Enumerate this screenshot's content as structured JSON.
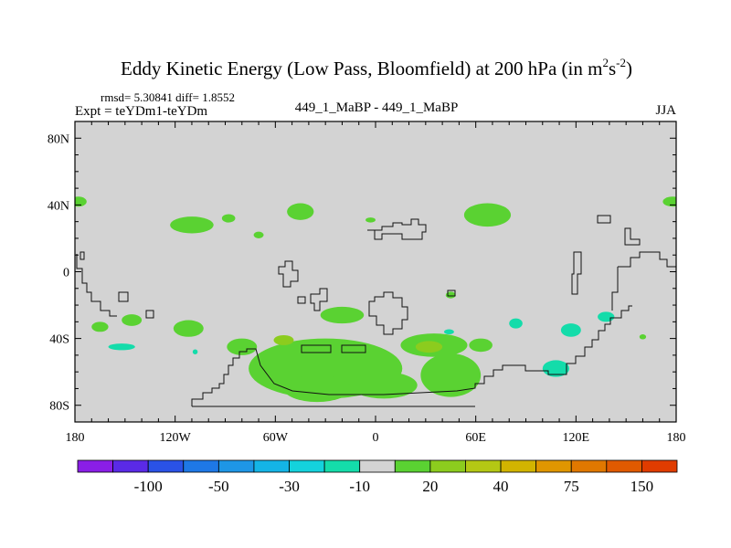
{
  "chart_data": {
    "type": "heatmap",
    "title": {
      "main": "Eddy Kinetic Energy (Low Pass, Bloomfield) at 200 hPa (in m",
      "sup1": "2",
      "mid": "s",
      "sup2": "-2",
      "end": ")"
    },
    "stats": "rmsd= 5.30841 diff= 1.8552",
    "expt": "Expt = teYDm1-teYDm",
    "subtitle": "449_1_MaBP - 449_1_MaBP",
    "season": "JJA",
    "xlim": [
      -180,
      180
    ],
    "ylim": [
      -90,
      90
    ],
    "x_ticks": [
      {
        "value": -180,
        "label": "180"
      },
      {
        "value": -120,
        "label": "120W"
      },
      {
        "value": -60,
        "label": "60W"
      },
      {
        "value": 0,
        "label": "0"
      },
      {
        "value": 60,
        "label": "60E"
      },
      {
        "value": 120,
        "label": "120E"
      },
      {
        "value": 180,
        "label": "180"
      }
    ],
    "y_ticks": [
      {
        "value": 80,
        "label": "80N"
      },
      {
        "value": 40,
        "label": "40N"
      },
      {
        "value": 0,
        "label": "0"
      },
      {
        "value": -40,
        "label": "40S"
      },
      {
        "value": -80,
        "label": "80S"
      }
    ],
    "background_color": "#d3d3d3",
    "colorbar": {
      "colors": [
        "#8a1ee6",
        "#5a2ae6",
        "#2a52e6",
        "#1e78e6",
        "#1e96e6",
        "#14b4e6",
        "#14d2dc",
        "#14dcaa",
        "#d3d3d3",
        "#5ad232",
        "#8ccc1e",
        "#b4c814",
        "#d2b400",
        "#e09600",
        "#e07800",
        "#e05a00",
        "#e03c00"
      ],
      "labels": [
        {
          "after_box": 1,
          "text": "-100"
        },
        {
          "after_box": 3,
          "text": "-50"
        },
        {
          "after_box": 5,
          "text": "-30"
        },
        {
          "after_box": 7,
          "text": "-10"
        },
        {
          "after_box": 9,
          "text": "20"
        },
        {
          "after_box": 11,
          "text": "40"
        },
        {
          "after_box": 13,
          "text": "75"
        },
        {
          "after_box": 15,
          "text": "150"
        }
      ]
    },
    "anomalies": [
      {
        "lon": -178,
        "lat": 42,
        "rx": 5,
        "ry": 3,
        "value": 20
      },
      {
        "lon": 178,
        "lat": 42,
        "rx": 6,
        "ry": 3,
        "value": 20
      },
      {
        "lon": -110,
        "lat": 28,
        "rx": 13,
        "ry": 5,
        "value": 20
      },
      {
        "lon": -88,
        "lat": 32,
        "rx": 4,
        "ry": 2.5,
        "value": 20
      },
      {
        "lon": -70,
        "lat": 22,
        "rx": 3,
        "ry": 2,
        "value": 20
      },
      {
        "lon": -45,
        "lat": 36,
        "rx": 8,
        "ry": 5,
        "value": 20
      },
      {
        "lon": -3,
        "lat": 31,
        "rx": 3,
        "ry": 1.5,
        "value": 20
      },
      {
        "lon": 67,
        "lat": 34,
        "rx": 14,
        "ry": 7,
        "value": 20
      },
      {
        "lon": 45,
        "lat": -14,
        "rx": 3,
        "ry": 2,
        "value": 20
      },
      {
        "lon": -165,
        "lat": -33,
        "rx": 5,
        "ry": 3,
        "value": 20
      },
      {
        "lon": -146,
        "lat": -29,
        "rx": 6,
        "ry": 3.5,
        "value": 20
      },
      {
        "lon": -112,
        "lat": -34,
        "rx": 9,
        "ry": 5,
        "value": 20
      },
      {
        "lon": -80,
        "lat": -45,
        "rx": 9,
        "ry": 5,
        "value": 20
      },
      {
        "lon": -30,
        "lat": -58,
        "rx": 46,
        "ry": 18,
        "value": 20
      },
      {
        "lon": -35,
        "lat": -70,
        "rx": 20,
        "ry": 8,
        "value": 20
      },
      {
        "lon": -20,
        "lat": -26,
        "rx": 13,
        "ry": 5,
        "value": 20
      },
      {
        "lon": 35,
        "lat": -44,
        "rx": 20,
        "ry": 7,
        "value": 20
      },
      {
        "lon": 45,
        "lat": -62,
        "rx": 18,
        "ry": 13,
        "value": 20
      },
      {
        "lon": 5,
        "lat": -68,
        "rx": 20,
        "ry": 8,
        "value": 20
      },
      {
        "lon": 63,
        "lat": -44,
        "rx": 7,
        "ry": 4,
        "value": 20
      },
      {
        "lon": 160,
        "lat": -39,
        "rx": 2,
        "ry": 1.5,
        "value": 20
      },
      {
        "lon": -55,
        "lat": -41,
        "rx": 6,
        "ry": 3,
        "value": 40
      },
      {
        "lon": 32,
        "lat": -45,
        "rx": 8,
        "ry": 3.5,
        "value": 40
      },
      {
        "lon": -152,
        "lat": -45,
        "rx": 8,
        "ry": 2,
        "value": -10
      },
      {
        "lon": -108,
        "lat": -48,
        "rx": 1.5,
        "ry": 1.5,
        "value": -10
      },
      {
        "lon": 44,
        "lat": -36,
        "rx": 3,
        "ry": 1.5,
        "value": -10
      },
      {
        "lon": 84,
        "lat": -31,
        "rx": 4,
        "ry": 3,
        "value": -10
      },
      {
        "lon": 117,
        "lat": -35,
        "rx": 6,
        "ry": 4,
        "value": -10
      },
      {
        "lon": 108,
        "lat": -58,
        "rx": 8,
        "ry": 5,
        "value": -10
      },
      {
        "lon": 138,
        "lat": -27,
        "rx": 5,
        "ry": 3,
        "value": -10
      }
    ]
  }
}
